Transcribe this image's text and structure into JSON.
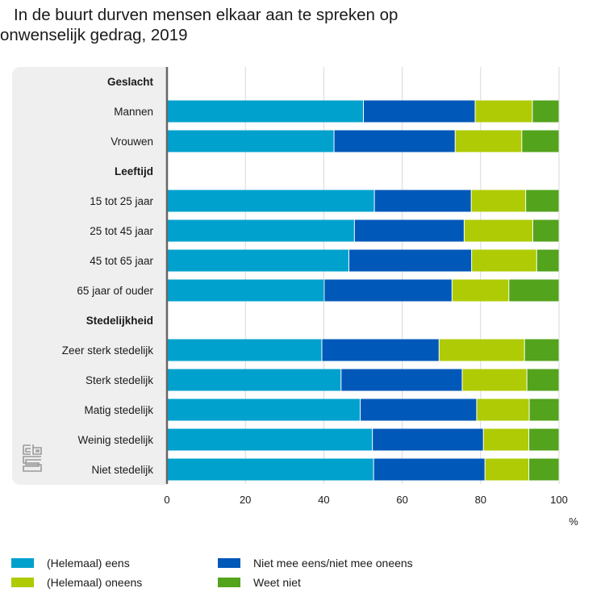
{
  "title": {
    "line1": "In de buurt durven mensen elkaar aan te spreken op",
    "line2": "onwenselijk gedrag, 2019"
  },
  "logo": {
    "icon": "cbs-logo-icon",
    "label": "cbs"
  },
  "colors": {
    "eens": "#00a1cd",
    "niet_mee_eens_niet_mee_oneens": "#0058b8",
    "oneens": "#afcb05",
    "weet_niet": "#53a31d",
    "panel": "#efefef",
    "axis": "#666666",
    "grid": "#d9d9d9"
  },
  "chart_data": {
    "type": "bar",
    "orientation": "horizontal",
    "stacked": true,
    "title": "In de buurt durven mensen elkaar aan te spreken op onwenselijk gedrag, 2019",
    "xlabel": "%",
    "ylabel": "",
    "xlim": [
      0,
      100
    ],
    "xticks": [
      "0",
      "20",
      "40",
      "60",
      "80",
      "100"
    ],
    "grid": true,
    "legend_position": "bottom",
    "rows": [
      {
        "label": "Geslacht",
        "group_header": true
      },
      {
        "label": "Mannen",
        "group_header": false,
        "values": [
          50.1,
          28.5,
          14.6,
          6.8
        ]
      },
      {
        "label": "Vrouwen",
        "group_header": false,
        "values": [
          42.6,
          30.9,
          17.0,
          9.5
        ]
      },
      {
        "label": "Leeftijd",
        "group_header": true
      },
      {
        "label": "15 tot 25 jaar",
        "group_header": false,
        "values": [
          52.9,
          24.7,
          13.9,
          8.5
        ]
      },
      {
        "label": "25 tot 45 jaar",
        "group_header": false,
        "values": [
          47.8,
          28.0,
          17.5,
          6.7
        ]
      },
      {
        "label": "45 tot 65 jaar",
        "group_header": false,
        "values": [
          46.4,
          31.3,
          16.6,
          5.7
        ]
      },
      {
        "label": "65 jaar of ouder",
        "group_header": false,
        "values": [
          40.1,
          32.6,
          14.5,
          12.8
        ]
      },
      {
        "label": "Stedelijkheid",
        "group_header": true
      },
      {
        "label": "Zeer sterk stedelijk",
        "group_header": false,
        "values": [
          39.5,
          29.9,
          21.8,
          8.8
        ]
      },
      {
        "label": "Sterk stedelijk",
        "group_header": false,
        "values": [
          44.4,
          30.9,
          16.5,
          8.2
        ]
      },
      {
        "label": "Matig stedelijk",
        "group_header": false,
        "values": [
          49.3,
          29.7,
          13.4,
          7.6
        ]
      },
      {
        "label": "Weinig stedelijk",
        "group_header": false,
        "values": [
          52.4,
          28.3,
          11.6,
          7.7
        ]
      },
      {
        "label": "Niet stedelijk",
        "group_header": false,
        "values": [
          52.7,
          28.4,
          11.2,
          7.7
        ]
      }
    ],
    "series": [
      {
        "name": "(Helemaal) eens",
        "color": "#00a1cd"
      },
      {
        "name": "Niet mee eens/niet mee oneens",
        "color": "#0058b8"
      },
      {
        "name": "(Helemaal) oneens",
        "color": "#afcb05"
      },
      {
        "name": "Weet niet",
        "color": "#53a31d"
      }
    ]
  },
  "legend": {
    "items": [
      {
        "label": "(Helemaal) eens",
        "color": "#00a1cd"
      },
      {
        "label": "Niet mee eens/niet mee oneens",
        "color": "#0058b8"
      },
      {
        "label": "(Helemaal) oneens",
        "color": "#afcb05"
      },
      {
        "label": "Weet niet",
        "color": "#53a31d"
      }
    ]
  }
}
